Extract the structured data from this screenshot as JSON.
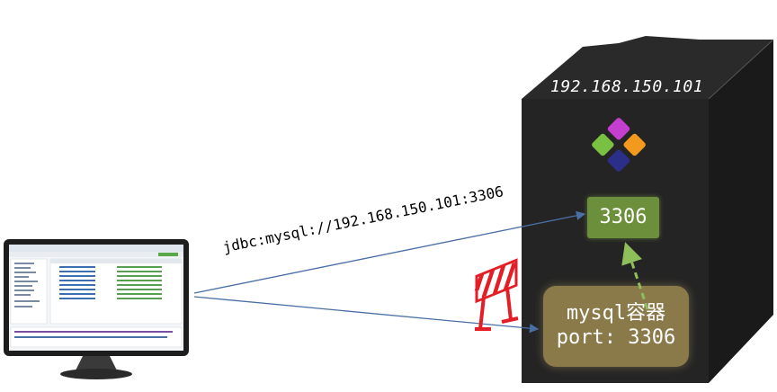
{
  "server": {
    "ip": "192.168.150.101",
    "host_port": "3306",
    "container_name": "mysql容器",
    "container_port": "port: 3306"
  },
  "connection": {
    "url": "jdbc:mysql://192.168.150.101:3306"
  },
  "icons": {
    "client": "monitor-icon",
    "app": "docker-app-icon",
    "blocked": "barrier-icon"
  },
  "colors": {
    "server_body": "#242424",
    "port_box": "#6b8f3a",
    "container_box": "#8a7a4a",
    "arrow": "#4a6fa5",
    "mapping_arrow": "#8fbf5a",
    "barrier": "#e41e26"
  }
}
